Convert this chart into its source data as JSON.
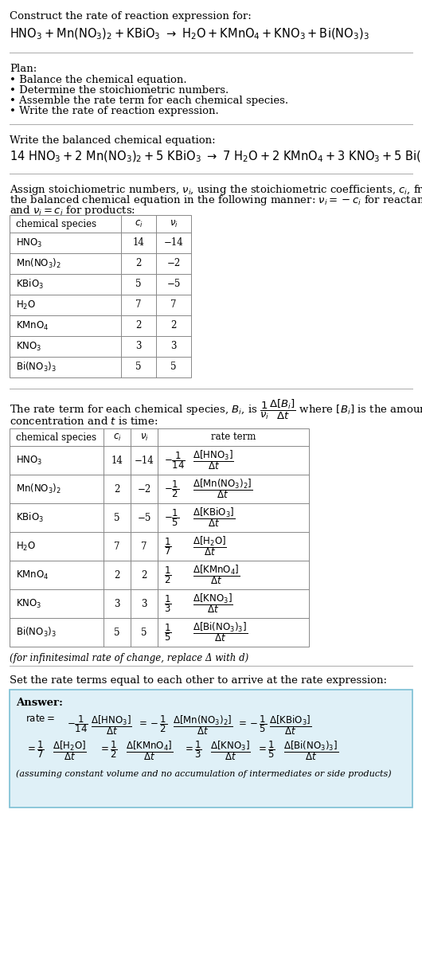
{
  "title_line1": "Construct the rate of reaction expression for:",
  "plan_header": "Plan:",
  "plan_items": [
    "• Balance the chemical equation.",
    "• Determine the stoichiometric numbers.",
    "• Assemble the rate term for each chemical species.",
    "• Write the rate of reaction expression."
  ],
  "balanced_header": "Write the balanced chemical equation:",
  "stoich_text1": "Assign stoichiometric numbers, $\\nu_i$, using the stoichiometric coefficients, $c_i$, from",
  "stoich_text2": "the balanced chemical equation in the following manner: $\\nu_i = -c_i$ for reactants",
  "stoich_text3": "and $\\nu_i = c_i$ for products:",
  "table1_data": [
    [
      "HNO_3",
      "14",
      "−14"
    ],
    [
      "Mn(NO_3)_2",
      "2",
      "−2"
    ],
    [
      "KBiO_3",
      "5",
      "−5"
    ],
    [
      "H_2O",
      "7",
      "7"
    ],
    [
      "KMnO_4",
      "2",
      "2"
    ],
    [
      "KNO_3",
      "3",
      "3"
    ],
    [
      "Bi(NO_3)_3",
      "5",
      "5"
    ]
  ],
  "table2_data": [
    [
      "HNO_3",
      "14",
      "−14"
    ],
    [
      "Mn(NO_3)_2",
      "2",
      "−2"
    ],
    [
      "KBiO_3",
      "5",
      "−5"
    ],
    [
      "H_2O",
      "7",
      "7"
    ],
    [
      "KMnO_4",
      "2",
      "2"
    ],
    [
      "KNO_3",
      "3",
      "3"
    ],
    [
      "Bi(NO_3)_3",
      "5",
      "5"
    ]
  ],
  "infinitesimal_note": "(for infinitesimal rate of change, replace Δ with d)",
  "set_equal_header": "Set the rate terms equal to each other to arrive at the rate expression:",
  "answer_box_color": "#dff0f7",
  "answer_box_border": "#7bbfd4",
  "answer_label": "Answer:",
  "answer_note": "(assuming constant volume and no accumulation of intermediates or side products)",
  "bg_color": "#ffffff",
  "text_color": "#000000",
  "table_line_color": "#888888",
  "sep_line_color": "#aaaaaa"
}
